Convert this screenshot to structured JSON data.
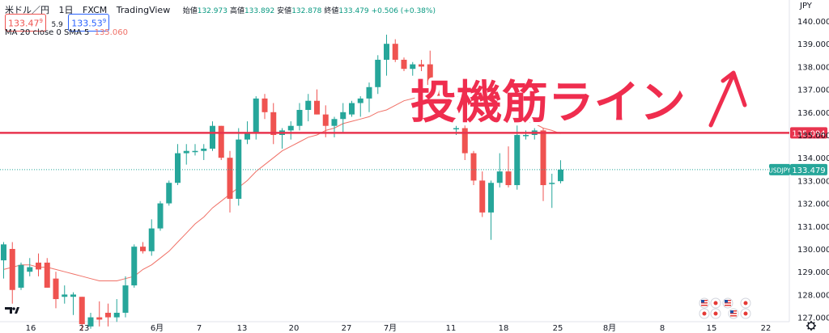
{
  "header": {
    "symbol": "米ドル／円",
    "interval": "1日",
    "source": "FXCM",
    "platform": "TradingView",
    "bid": "133.47",
    "bid_sup": "9",
    "spread": "5.9",
    "ask": "133.53",
    "ask_sup": "9",
    "ohlc": [
      {
        "label": "始値",
        "value": "132.973"
      },
      {
        "label": "高値",
        "value": "133.892"
      },
      {
        "label": "安値",
        "value": "132.878"
      },
      {
        "label": "終値",
        "value": "133.479"
      },
      {
        "label": "",
        "value": "+0.506 (+0.38%)"
      }
    ],
    "ma_label": "MA 20 close 0 SMA 5",
    "ma_value": "135.060"
  },
  "price_axis": {
    "currency": "JPY",
    "ticks": [
      "140.000",
      "139.000",
      "138.000",
      "137.000",
      "136.000",
      "135.000",
      "134.000",
      "133.000",
      "132.000",
      "131.000",
      "130.000",
      "129.000",
      "128.000",
      "127.000"
    ]
  },
  "time_axis": {
    "ticks": [
      "16",
      "23",
      "6月",
      "7",
      "13",
      "20",
      "27",
      "7月",
      "11",
      "18",
      "25",
      "8月",
      "8",
      "15",
      "22"
    ]
  },
  "badges": {
    "resistance": "135.094",
    "symbol": "USDJPY",
    "last": "133.479"
  },
  "annotation": {
    "text": "投機筋ライン"
  },
  "colors": {
    "up": "#26a69a",
    "down": "#ef5350",
    "ma": "#f07167",
    "line": "#e8344e",
    "ann": "#ef2d4e",
    "axis_text": "#131722"
  },
  "icons": {
    "logo": "tradingview-logo-icon",
    "settings": "gear-icon",
    "events": [
      "us-flag-icon",
      "jp-flag-icon",
      "us-flag-icon",
      "jp-flag-icon"
    ]
  },
  "chart_data": {
    "type": "candlestick",
    "symbol": "USDJPY",
    "timeframe": "1D",
    "ylim": [
      126.3,
      140.5
    ],
    "candles": [
      {
        "o": 129.5,
        "h": 130.3,
        "l": 128.7,
        "c": 130.2
      },
      {
        "o": 130.0,
        "h": 130.3,
        "l": 127.6,
        "c": 128.2
      },
      {
        "o": 128.3,
        "h": 129.4,
        "l": 128.2,
        "c": 129.3
      },
      {
        "o": 129.0,
        "h": 129.6,
        "l": 128.8,
        "c": 129.2
      },
      {
        "o": 129.4,
        "h": 129.8,
        "l": 128.8,
        "c": 129.1
      },
      {
        "o": 129.4,
        "h": 129.6,
        "l": 128.3,
        "c": 128.3
      },
      {
        "o": 128.7,
        "h": 129.0,
        "l": 127.4,
        "c": 127.8
      },
      {
        "o": 127.9,
        "h": 128.4,
        "l": 127.6,
        "c": 128.0
      },
      {
        "o": 127.9,
        "h": 128.1,
        "l": 127.1,
        "c": 128.0
      },
      {
        "o": 127.9,
        "h": 127.9,
        "l": 126.4,
        "c": 126.7
      },
      {
        "o": 126.6,
        "h": 127.2,
        "l": 126.5,
        "c": 127.0
      },
      {
        "o": 127.0,
        "h": 127.7,
        "l": 126.6,
        "c": 126.9
      },
      {
        "o": 127.2,
        "h": 127.6,
        "l": 126.6,
        "c": 127.0
      },
      {
        "o": 127.0,
        "h": 127.8,
        "l": 126.8,
        "c": 127.2
      },
      {
        "o": 127.2,
        "h": 128.8,
        "l": 127.0,
        "c": 128.4
      },
      {
        "o": 128.4,
        "h": 130.2,
        "l": 128.3,
        "c": 130.1
      },
      {
        "o": 130.1,
        "h": 130.3,
        "l": 129.8,
        "c": 129.9
      },
      {
        "o": 129.9,
        "h": 131.3,
        "l": 129.7,
        "c": 130.9
      },
      {
        "o": 130.9,
        "h": 132.1,
        "l": 130.8,
        "c": 132.0
      },
      {
        "o": 132.0,
        "h": 133.0,
        "l": 131.9,
        "c": 132.9
      },
      {
        "o": 132.9,
        "h": 134.6,
        "l": 132.8,
        "c": 134.2
      },
      {
        "o": 134.2,
        "h": 134.6,
        "l": 133.7,
        "c": 134.3
      },
      {
        "o": 134.3,
        "h": 134.6,
        "l": 134.1,
        "c": 134.3
      },
      {
        "o": 134.3,
        "h": 134.6,
        "l": 133.9,
        "c": 134.4
      },
      {
        "o": 134.4,
        "h": 135.6,
        "l": 134.3,
        "c": 135.4
      },
      {
        "o": 135.4,
        "h": 135.4,
        "l": 133.9,
        "c": 134.0
      },
      {
        "o": 134.0,
        "h": 134.3,
        "l": 131.6,
        "c": 132.2
      },
      {
        "o": 132.2,
        "h": 135.3,
        "l": 131.9,
        "c": 134.8
      },
      {
        "o": 134.8,
        "h": 135.6,
        "l": 134.6,
        "c": 135.1
      },
      {
        "o": 135.1,
        "h": 136.7,
        "l": 134.8,
        "c": 136.6
      },
      {
        "o": 136.6,
        "h": 136.8,
        "l": 135.7,
        "c": 136.0
      },
      {
        "o": 136.0,
        "h": 136.4,
        "l": 134.6,
        "c": 135.0
      },
      {
        "o": 135.0,
        "h": 135.3,
        "l": 134.4,
        "c": 135.2
      },
      {
        "o": 135.2,
        "h": 135.6,
        "l": 134.8,
        "c": 135.4
      },
      {
        "o": 135.4,
        "h": 136.4,
        "l": 135.2,
        "c": 136.1
      },
      {
        "o": 136.1,
        "h": 136.8,
        "l": 135.6,
        "c": 136.5
      },
      {
        "o": 136.5,
        "h": 137.0,
        "l": 135.9,
        "c": 135.9
      },
      {
        "o": 135.9,
        "h": 136.3,
        "l": 134.9,
        "c": 135.4
      },
      {
        "o": 135.4,
        "h": 135.8,
        "l": 134.9,
        "c": 135.7
      },
      {
        "o": 135.7,
        "h": 136.4,
        "l": 135.1,
        "c": 136.0
      },
      {
        "o": 135.9,
        "h": 136.5,
        "l": 135.8,
        "c": 136.4
      },
      {
        "o": 136.4,
        "h": 136.7,
        "l": 135.8,
        "c": 136.6
      },
      {
        "o": 136.6,
        "h": 137.3,
        "l": 136.0,
        "c": 137.1
      },
      {
        "o": 137.1,
        "h": 138.5,
        "l": 136.8,
        "c": 138.3
      },
      {
        "o": 138.3,
        "h": 139.4,
        "l": 137.6,
        "c": 139.0
      },
      {
        "o": 139.0,
        "h": 139.2,
        "l": 138.2,
        "c": 138.3
      },
      {
        "o": 138.3,
        "h": 138.4,
        "l": 137.8,
        "c": 137.9
      },
      {
        "o": 137.9,
        "h": 138.2,
        "l": 137.6,
        "c": 138.1
      },
      {
        "o": 138.1,
        "h": 138.3,
        "l": 137.8,
        "c": 138.0
      },
      {
        "o": 138.1,
        "h": 138.7,
        "l": 136.2,
        "c": 136.8
      },
      {
        "o": 136.8,
        "h": 137.0,
        "l": 136.0,
        "c": 136.4
      },
      {
        "o": 136.3,
        "h": 136.4,
        "l": 135.8,
        "c": 136.1
      },
      {
        "o": 135.3,
        "h": 135.4,
        "l": 135.0,
        "c": 135.3
      },
      {
        "o": 135.3,
        "h": 136.2,
        "l": 133.9,
        "c": 134.2
      },
      {
        "o": 134.2,
        "h": 134.3,
        "l": 132.8,
        "c": 133.0
      },
      {
        "o": 133.0,
        "h": 133.4,
        "l": 131.4,
        "c": 131.6
      },
      {
        "o": 131.6,
        "h": 133.0,
        "l": 130.4,
        "c": 132.9
      },
      {
        "o": 132.9,
        "h": 134.2,
        "l": 132.7,
        "c": 133.4
      },
      {
        "o": 133.4,
        "h": 134.5,
        "l": 132.7,
        "c": 132.8
      },
      {
        "o": 132.8,
        "h": 135.6,
        "l": 132.6,
        "c": 135.0
      },
      {
        "o": 135.0,
        "h": 135.2,
        "l": 134.8,
        "c": 135.0
      },
      {
        "o": 135.0,
        "h": 135.3,
        "l": 134.8,
        "c": 135.2
      },
      {
        "o": 135.2,
        "h": 135.3,
        "l": 132.1,
        "c": 132.8
      },
      {
        "o": 132.9,
        "h": 133.3,
        "l": 131.8,
        "c": 132.9
      },
      {
        "o": 132.973,
        "h": 133.892,
        "l": 132.878,
        "c": 133.479
      }
    ],
    "ma20": [
      129.1,
      129.2,
      129.3,
      129.3,
      129.2,
      129.2,
      129.1,
      129.0,
      128.9,
      128.8,
      128.7,
      128.6,
      128.6,
      128.6,
      128.7,
      128.8,
      129.1,
      129.3,
      129.6,
      129.9,
      130.3,
      130.7,
      131.1,
      131.4,
      131.8,
      132.1,
      132.4,
      132.7,
      133.0,
      133.4,
      133.7,
      134.0,
      134.3,
      134.5,
      134.7,
      134.9,
      135.0,
      135.2,
      135.3,
      135.5,
      135.6,
      135.7,
      135.8,
      136.0,
      136.1,
      136.3,
      136.5,
      136.6,
      136.7,
      136.8,
      136.8,
      136.8,
      136.7,
      136.6,
      136.4,
      136.2,
      136.1,
      136.0,
      135.8,
      135.7,
      135.6,
      135.5,
      135.3,
      135.2,
      135.06
    ],
    "horizontal_line": 135.094,
    "last_price": 133.479
  }
}
